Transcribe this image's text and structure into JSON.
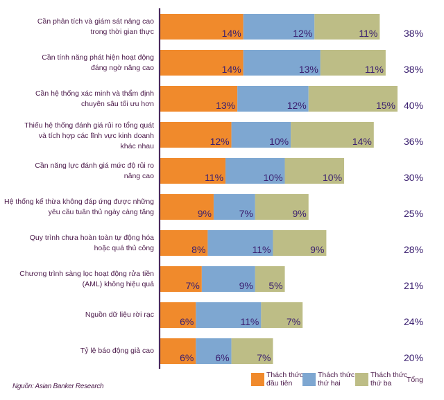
{
  "chart_data": {
    "type": "bar",
    "orientation": "horizontal",
    "stacked": true,
    "title": "",
    "xlabel": "",
    "ylabel": "",
    "xlim": [
      0,
      40
    ],
    "grid": false,
    "legend_position": "bottom-right",
    "categories": [
      "Cần phân tích và giám sát nâng cao\ntrong thời gian thực",
      "Cần tính năng phát hiện hoạt động\nđáng ngờ nâng cao",
      "Cần hệ thống xác minh và thẩm định\nchuyên sâu tối ưu hơn",
      "Thiếu hệ thống đánh giá rủi ro tổng quát\nvà tích hợp các lĩnh vực kinh doanh\nkhác nhau",
      "Cần năng lực đánh giá mức độ rủi ro\nnâng cao",
      "Hệ thống kế thừa không đáp ứng được những\nyêu cầu tuân thủ ngày càng tăng",
      "Quy trình chưa hoàn toàn tự động hóa\nhoặc quá thủ công",
      "Chương trình sàng lọc hoạt động rửa tiền\n(AML) không hiệu quả",
      "Nguồn dữ liệu rời rạc",
      "Tỷ lệ báo động giả cao"
    ],
    "series": [
      {
        "name": "Thách thức đầu tiên",
        "color": "#f08a2c",
        "values": [
          14,
          14,
          13,
          12,
          11,
          9,
          8,
          7,
          6,
          6
        ]
      },
      {
        "name": "Thách thức thứ hai",
        "color": "#7ea7d1",
        "values": [
          12,
          13,
          12,
          10,
          10,
          7,
          11,
          9,
          11,
          6
        ]
      },
      {
        "name": "Thách thức thứ ba",
        "color": "#bdbd86",
        "values": [
          11,
          11,
          15,
          14,
          10,
          9,
          9,
          5,
          7,
          7
        ]
      }
    ],
    "totals": [
      38,
      38,
      40,
      36,
      30,
      25,
      28,
      21,
      24,
      20
    ],
    "value_suffix": "%",
    "total_label": "Tổng",
    "source": "Nguồn: Asian Banker Research"
  },
  "legend": [
    {
      "line1": "Thách thức",
      "line2": "đầu tiên",
      "color": "#f08a2c"
    },
    {
      "line1": "Thách thức",
      "line2": "thứ hai",
      "color": "#7ea7d1"
    },
    {
      "line1": "Thách thức",
      "line2": "thứ ba",
      "color": "#bdbd86"
    }
  ],
  "legend_total": "Tổng",
  "source": "Nguồn: Asian Banker Research",
  "colors": {
    "axis": "#4b2a5e",
    "label_text": "#4b1a4a",
    "value_text": "#3b2070",
    "total_text": "#3b2070"
  }
}
